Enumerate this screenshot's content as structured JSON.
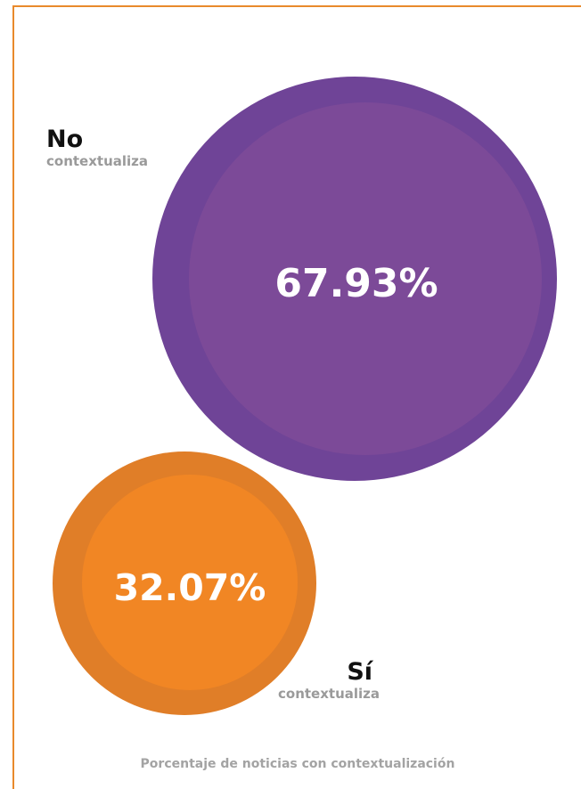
{
  "colors": {
    "frame": "#E98A2C",
    "no_outer": "#6F4497",
    "no_inner": "#7C4A98",
    "si_outer": "#E07E28",
    "si_inner": "#F18624"
  },
  "chart_data": {
    "type": "bubble",
    "title": "Porcentaje de noticias con contextualización",
    "series": [
      {
        "name": "No contextualiza",
        "label_main": "No",
        "label_sub": "contextualiza",
        "value": 67.93,
        "value_label": "67.93%"
      },
      {
        "name": "Sí contextualiza",
        "label_main": "Sí",
        "label_sub": "contextualiza",
        "value": 32.07,
        "value_label": "32.07%"
      }
    ]
  }
}
